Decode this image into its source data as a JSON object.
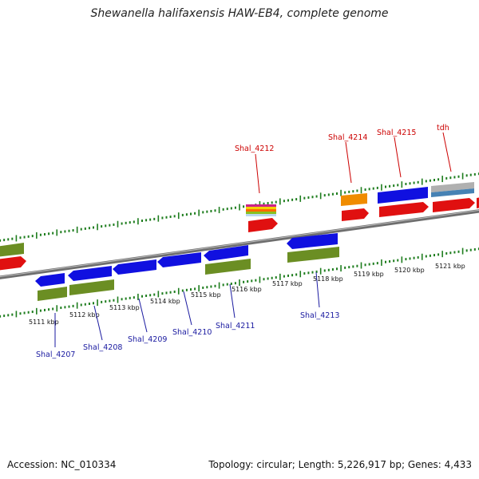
{
  "header": {
    "title": "Shewanella halifaxensis HAW-EB4, complete genome"
  },
  "footer": {
    "accession": "Accession: NC_010334",
    "stats": "Topology: circular; Length: 5,226,917 bp; Genes: 4,433"
  },
  "colors": {
    "forward_cds": "#e01010",
    "reverse_cds": "#1010e0",
    "cog_olive": "#6b8e23",
    "cog_orange": "#f08c00",
    "cog_grey": "#b0b0b0",
    "cog_steel": "#4682b4",
    "ruler_tick": "#1e7d1e",
    "backbone": "#808080",
    "label_forward": "#cc0000",
    "label_reverse": "#1a1aa0"
  },
  "ruler": {
    "ticks": [
      "5111 kbp",
      "5112 kbp",
      "5113 kbp",
      "5114 kbp",
      "5115 kbp",
      "5116 kbp",
      "5117 kbp",
      "5118 kbp",
      "5119 kbp",
      "5120 kbp",
      "5121 kbp"
    ]
  },
  "genes": {
    "upper_labels": [
      "Shal_4212",
      "Shal_4214",
      "Shal_4215",
      "tdh"
    ],
    "lower_labels": [
      "Shal_4207",
      "Shal_4208",
      "Shal_4209",
      "Shal_4210",
      "Shal_4211",
      "Shal_4213"
    ]
  }
}
